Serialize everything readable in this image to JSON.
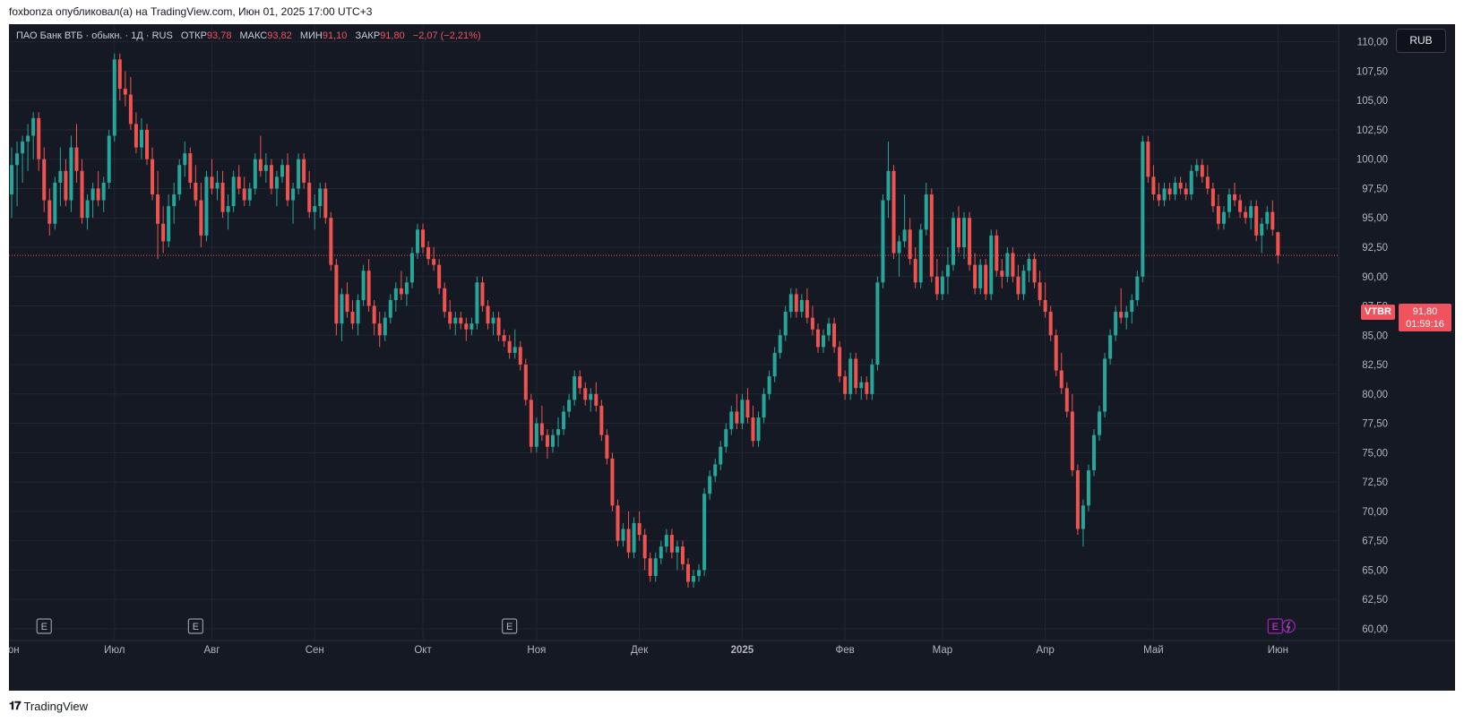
{
  "header": {
    "caption": "foxbonza опубликовал(а) на TradingView.com, Июн 01, 2025 17:00 UTC+3"
  },
  "legend": {
    "symbol": "ПАО Банк ВТБ · обыкн. · 1Д · RUS",
    "open_label": "ОТКР",
    "open": "93,78",
    "high_label": "МАКС",
    "high": "93,82",
    "low_label": "МИН",
    "low": "91,10",
    "close_label": "ЗАКР",
    "close": "91,80",
    "change": "−2,07 (−2,21%)"
  },
  "currency_button": "RUB",
  "price_tag": {
    "ticker": "VTBR",
    "price": "91,80",
    "countdown": "01:59:16"
  },
  "footer": {
    "brand": "TradingView"
  },
  "colors": {
    "up": "#26a69a",
    "down": "#ef5350",
    "background": "#151923",
    "grid": "#222632",
    "earnings": "#9c27b0"
  },
  "chart_data": {
    "type": "candlestick",
    "interval": "1D",
    "currency": "RUB",
    "y_axis": {
      "ylim": [
        59,
        111.5
      ],
      "ticks": [
        "110,00",
        "107,50",
        "105,00",
        "102,50",
        "100,00",
        "97,50",
        "95,00",
        "92,50",
        "90,00",
        "87,50",
        "85,00",
        "82,50",
        "80,00",
        "77,50",
        "75,00",
        "72,50",
        "70,00",
        "67,50",
        "65,00",
        "62,50",
        "60,00"
      ],
      "tick_values": [
        110,
        107.5,
        105,
        102.5,
        100,
        97.5,
        95,
        92.5,
        90,
        87.5,
        85,
        82.5,
        80,
        77.5,
        75,
        72.5,
        70,
        67.5,
        65,
        62.5,
        60
      ]
    },
    "x_axis": {
      "ticks": [
        {
          "label": "Июн",
          "index": -0.5,
          "bold": false
        },
        {
          "label": "Июл",
          "index": 19,
          "bold": false
        },
        {
          "label": "Авг",
          "index": 37,
          "bold": false
        },
        {
          "label": "Сен",
          "index": 56,
          "bold": false
        },
        {
          "label": "Окт",
          "index": 76,
          "bold": false
        },
        {
          "label": "Ноя",
          "index": 97,
          "bold": false
        },
        {
          "label": "Дек",
          "index": 116,
          "bold": false
        },
        {
          "label": "2025",
          "index": 135,
          "bold": true
        },
        {
          "label": "Фев",
          "index": 154,
          "bold": false
        },
        {
          "label": "Мар",
          "index": 172,
          "bold": false
        },
        {
          "label": "Апр",
          "index": 191,
          "bold": false
        },
        {
          "label": "Май",
          "index": 211,
          "bold": false
        },
        {
          "label": "Июн",
          "index": 234,
          "bold": false
        }
      ]
    },
    "earnings_markers": [
      {
        "label": "E",
        "index": 6,
        "highlight": false
      },
      {
        "label": "E",
        "index": 34,
        "highlight": false
      },
      {
        "label": "E",
        "index": 92,
        "highlight": false
      },
      {
        "label": "E",
        "index": 233.5,
        "highlight": true
      }
    ],
    "last_price": 91.8,
    "candles": [
      [
        97,
        101,
        95,
        99.5
      ],
      [
        99.5,
        101.5,
        96,
        100.5
      ],
      [
        100.5,
        102,
        98,
        101.5
      ],
      [
        101.5,
        103,
        99,
        102
      ],
      [
        102,
        104,
        100,
        103.5
      ],
      [
        103.5,
        104,
        99,
        100
      ],
      [
        100,
        101,
        95.5,
        96.5
      ],
      [
        96.5,
        97.5,
        93.5,
        94.5
      ],
      [
        94.5,
        98.5,
        94,
        98
      ],
      [
        98,
        101,
        96,
        99
      ],
      [
        99,
        100,
        96,
        96.5
      ],
      [
        96.5,
        102,
        95.5,
        101
      ],
      [
        101,
        103,
        98,
        99
      ],
      [
        99,
        100,
        94.5,
        95
      ],
      [
        95,
        97,
        94,
        96.5
      ],
      [
        96.5,
        98,
        95,
        97.5
      ],
      [
        97.5,
        99,
        96,
        96.5
      ],
      [
        96.5,
        98.5,
        95.5,
        98
      ],
      [
        98,
        102.5,
        97.5,
        102
      ],
      [
        102,
        109,
        101.5,
        108.5
      ],
      [
        108.5,
        109,
        105,
        106
      ],
      [
        106,
        107.5,
        104.5,
        105.5
      ],
      [
        105.5,
        107,
        102.5,
        103
      ],
      [
        103,
        104,
        100.5,
        101
      ],
      [
        101,
        103.5,
        100,
        102.5
      ],
      [
        102.5,
        103,
        99.5,
        100
      ],
      [
        100,
        101,
        96.5,
        97
      ],
      [
        97,
        99,
        91.5,
        94.5
      ],
      [
        94.5,
        96,
        92,
        93
      ],
      [
        93,
        97,
        92.5,
        96
      ],
      [
        96,
        98,
        94.5,
        97
      ],
      [
        97,
        100,
        96.5,
        99.5
      ],
      [
        99.5,
        101.5,
        98.5,
        100.5
      ],
      [
        100.5,
        101,
        97.5,
        98
      ],
      [
        98,
        99.5,
        96,
        96.5
      ],
      [
        96.5,
        98,
        92.5,
        93.5
      ],
      [
        93.5,
        99,
        93,
        98.5
      ],
      [
        98.5,
        100,
        97,
        97.5
      ],
      [
        97.5,
        99,
        96.5,
        98
      ],
      [
        98,
        99,
        95,
        95.5
      ],
      [
        95.5,
        97,
        94,
        96
      ],
      [
        96,
        99,
        95.5,
        98.5
      ],
      [
        98.5,
        99.5,
        97,
        97.5
      ],
      [
        97.5,
        98.5,
        96,
        96.5
      ],
      [
        96.5,
        98,
        96,
        97.5
      ],
      [
        97.5,
        100.5,
        97,
        100
      ],
      [
        100,
        102,
        98.5,
        99
      ],
      [
        99,
        100.5,
        98,
        99.5
      ],
      [
        99.5,
        100,
        97,
        97.5
      ],
      [
        97.5,
        99,
        96,
        98.5
      ],
      [
        98.5,
        100,
        98,
        99.5
      ],
      [
        99.5,
        100.5,
        96,
        96.5
      ],
      [
        96.5,
        98,
        94.5,
        97.5
      ],
      [
        97.5,
        100.5,
        97,
        100
      ],
      [
        100,
        100.5,
        97.5,
        98
      ],
      [
        98,
        99,
        95,
        95.5
      ],
      [
        95.5,
        97,
        94,
        96
      ],
      [
        96,
        98,
        95,
        97.5
      ],
      [
        97.5,
        98,
        94.5,
        95
      ],
      [
        95,
        95.5,
        90.5,
        91
      ],
      [
        91,
        91.5,
        85,
        86
      ],
      [
        86,
        89,
        84.5,
        88.5
      ],
      [
        88.5,
        89.5,
        86.5,
        87
      ],
      [
        87,
        88,
        85.5,
        86
      ],
      [
        86,
        88.5,
        85,
        88
      ],
      [
        88,
        91,
        87.5,
        90.5
      ],
      [
        90.5,
        91.5,
        87,
        87.5
      ],
      [
        87.5,
        88,
        85,
        86
      ],
      [
        86,
        87,
        84,
        85
      ],
      [
        85,
        87,
        84.5,
        86.5
      ],
      [
        86.5,
        88.5,
        86,
        88
      ],
      [
        88,
        89.5,
        87,
        89
      ],
      [
        89,
        90.5,
        88,
        88.5
      ],
      [
        88.5,
        90,
        87.5,
        89.5
      ],
      [
        89.5,
        92.5,
        89,
        92
      ],
      [
        92,
        94.5,
        91.5,
        94
      ],
      [
        94,
        94.5,
        92,
        92.5
      ],
      [
        92.5,
        93,
        91,
        91.5
      ],
      [
        91.5,
        92.5,
        90.5,
        91
      ],
      [
        91,
        91.5,
        88.5,
        89
      ],
      [
        89,
        89.5,
        86.5,
        87
      ],
      [
        87,
        88,
        85.5,
        86
      ],
      [
        86,
        87,
        85,
        86.5
      ],
      [
        86.5,
        87,
        85.5,
        86
      ],
      [
        86,
        86.5,
        84.5,
        85.5
      ],
      [
        85.5,
        86.5,
        85,
        86
      ],
      [
        86,
        90,
        85.5,
        89.5
      ],
      [
        89.5,
        90,
        87,
        87.5
      ],
      [
        87.5,
        88,
        85.5,
        86
      ],
      [
        86,
        87,
        85,
        86.5
      ],
      [
        86.5,
        87,
        84.5,
        85
      ],
      [
        85,
        85.5,
        84,
        84.5
      ],
      [
        84.5,
        85,
        83,
        83.5
      ],
      [
        83.5,
        85.5,
        83,
        84
      ],
      [
        84,
        84.5,
        82,
        82.5
      ],
      [
        82.5,
        83,
        79,
        79.5
      ],
      [
        79.5,
        80,
        75,
        75.5
      ],
      [
        75.5,
        78,
        75,
        77.5
      ],
      [
        77.5,
        79,
        76,
        76.5
      ],
      [
        76.5,
        77,
        74.5,
        75.5
      ],
      [
        75.5,
        77,
        75,
        76.5
      ],
      [
        76.5,
        78,
        75.5,
        77
      ],
      [
        77,
        79,
        76.5,
        78.5
      ],
      [
        78.5,
        80,
        78,
        79.5
      ],
      [
        79.5,
        82,
        79,
        81.5
      ],
      [
        81.5,
        82,
        80,
        80.5
      ],
      [
        80.5,
        81,
        79,
        79.5
      ],
      [
        79.5,
        80.5,
        78.5,
        80
      ],
      [
        80,
        81,
        78.5,
        79
      ],
      [
        79,
        79.5,
        76,
        76.5
      ],
      [
        76.5,
        77,
        74,
        74.5
      ],
      [
        74.5,
        75,
        70,
        70.5
      ],
      [
        70.5,
        71,
        67,
        67.5
      ],
      [
        67.5,
        69,
        67,
        68.5
      ],
      [
        68.5,
        70,
        66,
        66.5
      ],
      [
        66.5,
        69.5,
        66,
        69
      ],
      [
        69,
        70,
        67.5,
        68
      ],
      [
        68,
        68.5,
        65,
        66
      ],
      [
        66,
        66.5,
        64,
        64.5
      ],
      [
        64.5,
        66.5,
        64,
        66
      ],
      [
        66,
        67.5,
        65.5,
        67
      ],
      [
        67,
        68.5,
        66.5,
        68
      ],
      [
        68,
        68.5,
        66,
        66.5
      ],
      [
        66.5,
        67.5,
        65,
        67
      ],
      [
        67,
        67.5,
        65,
        65.5
      ],
      [
        65.5,
        66,
        63.5,
        64
      ],
      [
        64,
        65,
        63.5,
        64.5
      ],
      [
        64.5,
        65.5,
        64,
        65
      ],
      [
        65,
        72,
        64.5,
        71.5
      ],
      [
        71.5,
        73.5,
        71,
        73
      ],
      [
        73,
        74.5,
        72.5,
        74
      ],
      [
        74,
        76,
        73.5,
        75.5
      ],
      [
        75.5,
        77.5,
        75,
        77
      ],
      [
        77,
        79,
        76.5,
        78.5
      ],
      [
        78.5,
        80,
        77,
        77.5
      ],
      [
        77.5,
        80,
        77,
        79.5
      ],
      [
        79.5,
        80.5,
        77.5,
        78
      ],
      [
        78,
        79,
        75.5,
        76
      ],
      [
        76,
        78.5,
        75.5,
        78
      ],
      [
        78,
        80.5,
        77.5,
        80
      ],
      [
        80,
        82,
        79.5,
        81.5
      ],
      [
        81.5,
        84,
        81,
        83.5
      ],
      [
        83.5,
        85.5,
        83,
        85
      ],
      [
        85,
        87.5,
        84.5,
        87
      ],
      [
        87,
        89,
        86.5,
        88.5
      ],
      [
        88.5,
        89,
        86.5,
        87
      ],
      [
        87,
        88.5,
        86.5,
        88
      ],
      [
        88,
        89,
        86,
        86.5
      ],
      [
        86.5,
        87.5,
        85,
        85.5
      ],
      [
        85.5,
        86,
        83.5,
        84
      ],
      [
        84,
        85.5,
        83.5,
        85
      ],
      [
        85,
        86.5,
        84.5,
        86
      ],
      [
        86,
        86.5,
        83.5,
        84
      ],
      [
        84,
        84.5,
        81,
        81.5
      ],
      [
        81.5,
        82,
        79.5,
        80
      ],
      [
        80,
        83.5,
        79.5,
        83
      ],
      [
        83,
        83.5,
        80,
        80.5
      ],
      [
        80.5,
        81.5,
        79.5,
        81
      ],
      [
        81,
        81.5,
        79.5,
        80
      ],
      [
        80,
        83,
        79.5,
        82.5
      ],
      [
        82.5,
        90,
        82,
        89.5
      ],
      [
        89.5,
        97,
        89,
        96.5
      ],
      [
        96.5,
        101.5,
        95,
        99
      ],
      [
        99,
        99.5,
        91.5,
        92
      ],
      [
        92,
        93.5,
        90,
        93
      ],
      [
        93,
        97,
        92.5,
        94
      ],
      [
        94,
        95,
        91,
        91.5
      ],
      [
        91.5,
        92.5,
        89,
        89.5
      ],
      [
        89.5,
        94.5,
        89,
        94
      ],
      [
        94,
        98,
        93.5,
        97
      ],
      [
        97,
        97.5,
        89.5,
        90
      ],
      [
        90,
        91.5,
        88,
        88.5
      ],
      [
        88.5,
        90.5,
        88,
        90
      ],
      [
        90,
        92.5,
        88.5,
        91
      ],
      [
        91,
        95.5,
        90.5,
        95
      ],
      [
        95,
        96,
        92,
        92.5
      ],
      [
        92.5,
        95.5,
        91.5,
        95
      ],
      [
        95,
        95.5,
        90.5,
        91
      ],
      [
        91,
        92,
        88.5,
        89
      ],
      [
        89,
        91.5,
        88.5,
        91
      ],
      [
        91,
        91.5,
        88,
        88.5
      ],
      [
        88.5,
        94,
        88,
        93.5
      ],
      [
        93.5,
        94,
        90,
        90.5
      ],
      [
        90.5,
        91.5,
        89,
        90
      ],
      [
        90,
        92.5,
        89.5,
        92
      ],
      [
        92,
        92.5,
        89.5,
        90
      ],
      [
        90,
        91,
        88,
        88.5
      ],
      [
        88.5,
        91,
        88,
        90.5
      ],
      [
        90.5,
        92,
        89.5,
        91.5
      ],
      [
        91.5,
        92,
        89,
        89.5
      ],
      [
        89.5,
        90.5,
        87.5,
        88
      ],
      [
        88,
        89.5,
        86.5,
        87
      ],
      [
        87,
        87.5,
        84.5,
        85
      ],
      [
        85,
        85.5,
        81.5,
        82
      ],
      [
        82,
        83.5,
        80,
        80.5
      ],
      [
        80.5,
        81,
        78,
        78.5
      ],
      [
        78.5,
        80,
        73,
        73.5
      ],
      [
        73.5,
        74,
        68,
        68.5
      ],
      [
        68.5,
        71,
        67,
        70.5
      ],
      [
        70.5,
        74,
        70,
        73.5
      ],
      [
        73.5,
        77,
        73,
        76.5
      ],
      [
        76.5,
        79,
        76,
        78.5
      ],
      [
        78.5,
        83.5,
        78,
        83
      ],
      [
        83,
        85.5,
        82.5,
        85
      ],
      [
        85,
        87.5,
        84.5,
        87
      ],
      [
        87,
        89,
        86,
        86.5
      ],
      [
        86.5,
        87.5,
        85.5,
        87
      ],
      [
        87,
        88.5,
        86,
        88
      ],
      [
        88,
        90.5,
        87.5,
        90
      ],
      [
        90,
        102,
        89.5,
        101.5
      ],
      [
        101.5,
        102,
        98,
        98.5
      ],
      [
        98.5,
        99.5,
        96.5,
        97
      ],
      [
        97,
        98,
        96,
        96.5
      ],
      [
        96.5,
        98,
        96,
        97.5
      ],
      [
        97.5,
        98,
        96.5,
        97
      ],
      [
        97,
        98.5,
        96.5,
        98
      ],
      [
        98,
        98.5,
        97,
        97.5
      ],
      [
        97.5,
        98,
        96.5,
        97
      ],
      [
        97,
        99.5,
        96.5,
        99
      ],
      [
        99,
        100,
        98.5,
        99.5
      ],
      [
        99.5,
        100,
        98,
        98.5
      ],
      [
        98.5,
        99.5,
        97,
        97.5
      ],
      [
        97.5,
        98,
        95.5,
        96
      ],
      [
        96,
        97,
        94,
        94.5
      ],
      [
        94.5,
        96,
        94,
        95.5
      ],
      [
        95.5,
        97.5,
        95,
        97
      ],
      [
        97,
        98,
        96,
        96.5
      ],
      [
        96.5,
        97,
        95,
        95.5
      ],
      [
        95.5,
        96,
        94.5,
        95
      ],
      [
        95,
        96.5,
        94,
        96
      ],
      [
        96,
        96.5,
        93,
        93.5
      ],
      [
        93.5,
        95,
        92,
        94.5
      ],
      [
        94.5,
        96,
        94,
        95.5
      ],
      [
        95.5,
        96.5,
        93.5,
        94
      ],
      [
        93.78,
        93.82,
        91.1,
        91.8
      ]
    ]
  }
}
